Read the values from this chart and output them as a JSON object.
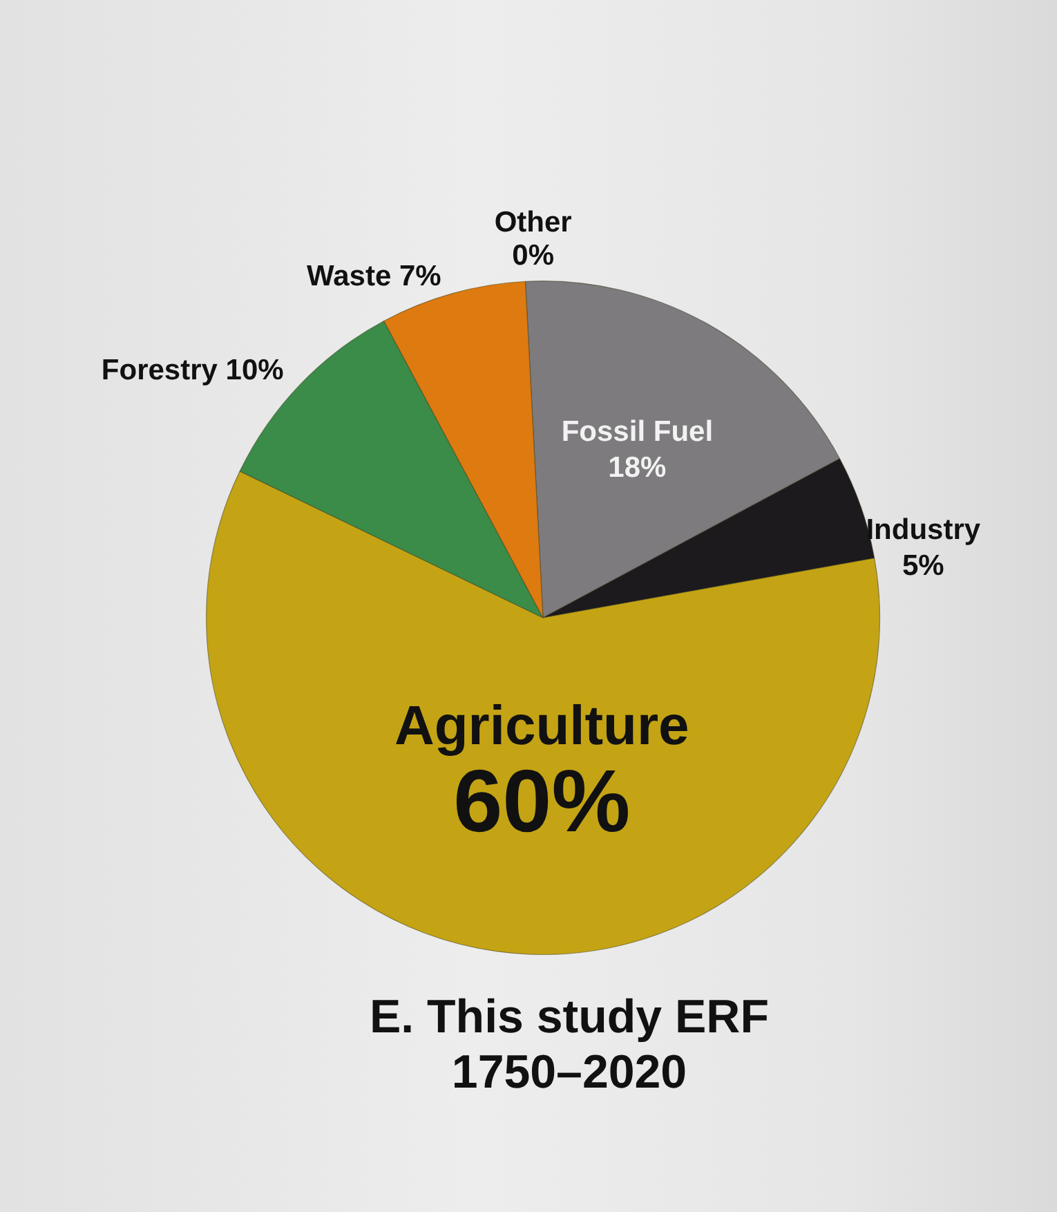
{
  "chart_data": {
    "type": "pie",
    "title": "E. This study ERF 1750–2020",
    "categories": [
      "Other",
      "Fossil Fuel",
      "Industry",
      "Agriculture",
      "Forestry",
      "Waste"
    ],
    "values": [
      0,
      18,
      5,
      60,
      10,
      7
    ],
    "value_labels": [
      "0%",
      "18%",
      "5%",
      "60%",
      "10%",
      "7%"
    ],
    "colors": [
      null,
      "#7d7b7d",
      "#1c1a1c",
      "#c4a414",
      "#3a8c48",
      "#dd7a10"
    ]
  }
}
